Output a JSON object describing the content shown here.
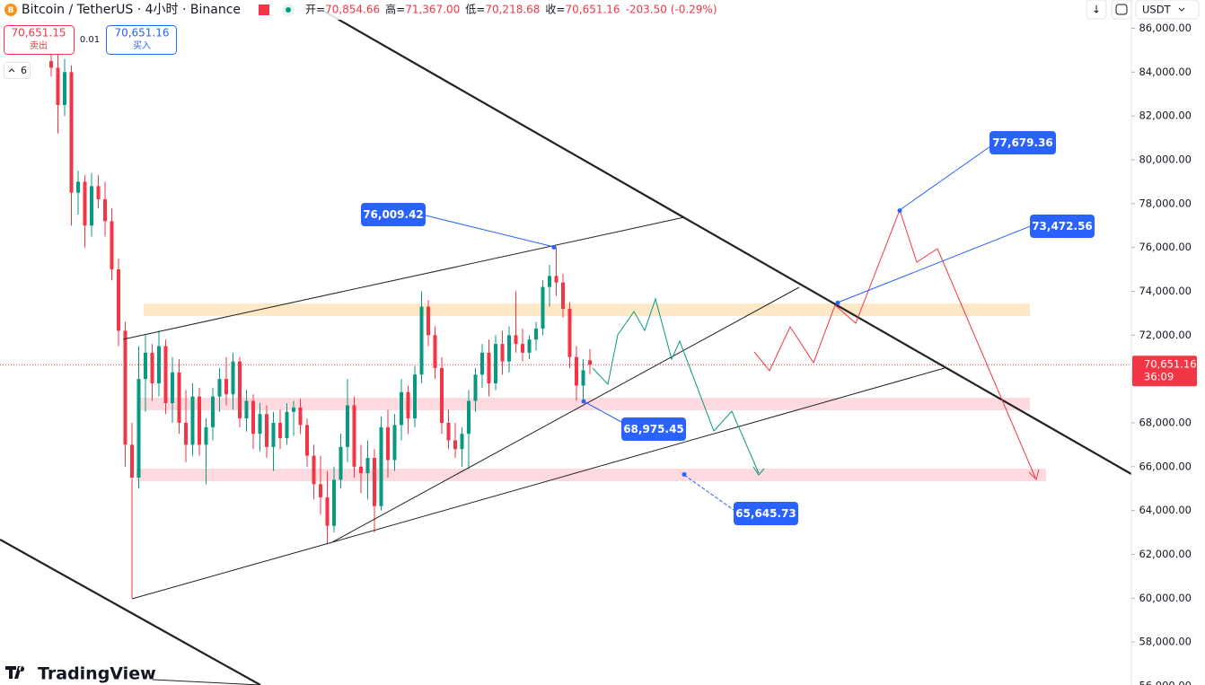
{
  "header": {
    "symbol": "Bitcoin / TetherUS · 4小时 · Binance",
    "ohlc": [
      {
        "label": "开=",
        "value": "70,854.66"
      },
      {
        "label": "高=",
        "value": "71,367.00"
      },
      {
        "label": "低=",
        "value": "70,218.68"
      },
      {
        "label": "收=",
        "value": "70,651.16"
      }
    ],
    "change": "-203.50 (-0.29%)",
    "sell_price": "70,651.15",
    "sell_label": "卖出",
    "spread": "0.01",
    "buy_price": "70,651.16",
    "buy_label": "买入",
    "indicators_count": "6",
    "currency": "USDT",
    "brand": "TradingView"
  },
  "chart_data": {
    "type": "candlestick",
    "up_color": "#089981",
    "down_color": "#f23645",
    "ylim": [
      56000,
      86000
    ],
    "yticks": [
      {
        "value": 86000,
        "label": "86,000.00"
      },
      {
        "value": 84000,
        "label": "84,000.00"
      },
      {
        "value": 82000,
        "label": "82,000.00"
      },
      {
        "value": 80000,
        "label": "80,000.00"
      },
      {
        "value": 78000,
        "label": "78,000.00"
      },
      {
        "value": 76000,
        "label": "76,000.00"
      },
      {
        "value": 74000,
        "label": "74,000.00"
      },
      {
        "value": 72000,
        "label": "72,000.00"
      },
      {
        "value": 70000,
        "label": "70,000.00"
      },
      {
        "value": 68000,
        "label": "68,000.00"
      },
      {
        "value": 66000,
        "label": "66,000.00"
      },
      {
        "value": 64000,
        "label": "64,000.00"
      },
      {
        "value": 62000,
        "label": "62,000.00"
      },
      {
        "value": 60000,
        "label": "60,000.00"
      },
      {
        "value": 58000,
        "label": "58,000.00"
      },
      {
        "value": 56000,
        "label": "56,000.00"
      }
    ],
    "last_price": {
      "value": 70651.16,
      "label": "70,651.16",
      "countdown": "36:09"
    },
    "annotations": [
      {
        "value": 76009.42,
        "label": "76,009.42"
      },
      {
        "value": 68975.45,
        "label": "68,975.45"
      },
      {
        "value": 65645.73,
        "label": "65,645.73"
      },
      {
        "value": 77679.36,
        "label": "77,679.36"
      },
      {
        "value": 73472.56,
        "label": "73,472.56"
      }
    ],
    "ohlc": [
      [
        84500,
        85200,
        83800,
        84200
      ],
      [
        84200,
        84800,
        81200,
        82500
      ],
      [
        82500,
        84600,
        82000,
        84000
      ],
      [
        84000,
        84300,
        77000,
        78500
      ],
      [
        78500,
        79500,
        77500,
        79000
      ],
      [
        79000,
        79300,
        76000,
        77000
      ],
      [
        77000,
        79400,
        76500,
        78800
      ],
      [
        78800,
        79300,
        77800,
        78200
      ],
      [
        78200,
        79000,
        76500,
        77200
      ],
      [
        77200,
        77800,
        74500,
        75000
      ],
      [
        75000,
        75500,
        71500,
        72200
      ],
      [
        72200,
        72600,
        66000,
        67000
      ],
      [
        67000,
        68000,
        60000,
        65500
      ],
      [
        65500,
        71500,
        65000,
        70000
      ],
      [
        70000,
        72000,
        68500,
        71200
      ],
      [
        71200,
        71600,
        69000,
        69800
      ],
      [
        69800,
        72200,
        69200,
        71500
      ],
      [
        71500,
        71800,
        68400,
        68900
      ],
      [
        68900,
        71000,
        68000,
        70300
      ],
      [
        70300,
        70900,
        67500,
        68000
      ],
      [
        68000,
        69500,
        66200,
        67000
      ],
      [
        67000,
        69800,
        66500,
        69200
      ],
      [
        69200,
        69600,
        66500,
        67000
      ],
      [
        67000,
        68200,
        65200,
        67800
      ],
      [
        67800,
        69600,
        67200,
        69200
      ],
      [
        69200,
        70500,
        68500,
        70000
      ],
      [
        70000,
        71000,
        68800,
        69300
      ],
      [
        69300,
        71200,
        68600,
        70800
      ],
      [
        70800,
        71000,
        67800,
        68200
      ],
      [
        68200,
        69500,
        67600,
        69000
      ],
      [
        69000,
        69300,
        66800,
        67500
      ],
      [
        67500,
        68900,
        66700,
        68400
      ],
      [
        68400,
        68800,
        66400,
        66900
      ],
      [
        66900,
        68500,
        65800,
        68000
      ],
      [
        68000,
        68600,
        66800,
        67300
      ],
      [
        67300,
        68900,
        67000,
        68500
      ],
      [
        68500,
        69000,
        67400,
        68700
      ],
      [
        68700,
        69100,
        67500,
        67900
      ],
      [
        67900,
        68200,
        66000,
        66500
      ],
      [
        66500,
        67000,
        64500,
        65200
      ],
      [
        65200,
        66500,
        63800,
        64600
      ],
      [
        64600,
        65800,
        62500,
        63300
      ],
      [
        63300,
        66000,
        63000,
        65400
      ],
      [
        65400,
        67500,
        65000,
        66900
      ],
      [
        66900,
        70000,
        66200,
        68800
      ],
      [
        68800,
        69200,
        65500,
        66000
      ],
      [
        66000,
        67000,
        64800,
        65700
      ],
      [
        65700,
        67200,
        64500,
        66400
      ],
      [
        66400,
        66800,
        63000,
        64200
      ],
      [
        64200,
        68300,
        64000,
        67800
      ],
      [
        67800,
        68600,
        65500,
        66300
      ],
      [
        66300,
        68400,
        65800,
        67900
      ],
      [
        67900,
        70000,
        67200,
        69400
      ],
      [
        69400,
        69700,
        67500,
        68200
      ],
      [
        68200,
        70600,
        67800,
        70200
      ],
      [
        70200,
        74000,
        69800,
        73300
      ],
      [
        73300,
        73600,
        71500,
        72000
      ],
      [
        72000,
        72400,
        70000,
        70500
      ],
      [
        70500,
        71000,
        67500,
        68000
      ],
      [
        68000,
        68600,
        66800,
        67200
      ],
      [
        67200,
        68000,
        66400,
        66800
      ],
      [
        66800,
        67800,
        66000,
        67500
      ],
      [
        67500,
        69500,
        65900,
        69000
      ],
      [
        69000,
        70500,
        68500,
        70200
      ],
      [
        70200,
        71600,
        69600,
        71200
      ],
      [
        71200,
        71800,
        69200,
        69800
      ],
      [
        69800,
        72000,
        69500,
        71600
      ],
      [
        71600,
        72200,
        70200,
        70800
      ],
      [
        70800,
        72400,
        70300,
        72000
      ],
      [
        72000,
        74000,
        71200,
        71600
      ],
      [
        71600,
        72300,
        70800,
        71200
      ],
      [
        71200,
        72000,
        70900,
        71800
      ],
      [
        71800,
        72600,
        71300,
        72300
      ],
      [
        72300,
        74500,
        72000,
        74200
      ],
      [
        74200,
        75200,
        73300,
        74700
      ],
      [
        74700,
        76009.42,
        73800,
        74400
      ],
      [
        74400,
        74800,
        72800,
        73200
      ],
      [
        73200,
        73500,
        70500,
        71000
      ],
      [
        71000,
        71500,
        69000,
        69700
      ],
      [
        69700,
        70900,
        68975.45,
        70400
      ],
      [
        70854.66,
        71367,
        70218.68,
        70651.16
      ]
    ]
  }
}
